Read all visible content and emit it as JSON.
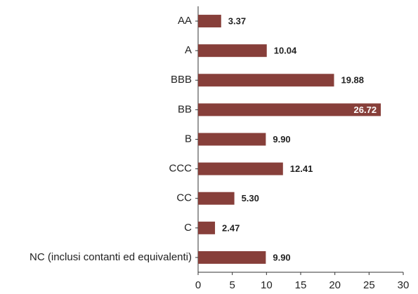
{
  "chart_data": {
    "type": "bar",
    "orientation": "horizontal",
    "categories": [
      "AA",
      "A",
      "BBB",
      "BB",
      "B",
      "CCC",
      "CC",
      "C",
      "NC (inclusi contanti ed equivalenti)"
    ],
    "values": [
      3.37,
      10.04,
      19.88,
      26.72,
      9.9,
      12.41,
      5.3,
      2.47,
      9.9
    ],
    "value_labels": [
      "3.37",
      "10.04",
      "19.88",
      "26.72",
      "9.90",
      "12.41",
      "5.30",
      "2.47",
      "9.90"
    ],
    "color": "#873f3a",
    "xlim": [
      0,
      30
    ],
    "xticks": [
      0,
      5,
      10,
      15,
      20,
      25,
      30
    ],
    "grid": false
  }
}
